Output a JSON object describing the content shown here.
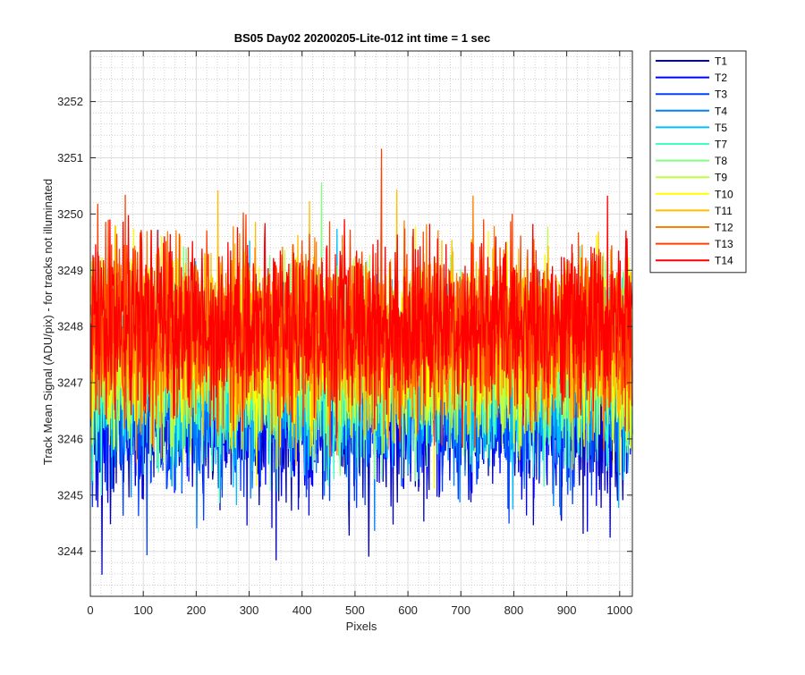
{
  "chart_data": {
    "type": "line",
    "title": "BS05 Day02 20200205-Lite-012 int time = 1 sec",
    "xlabel": "Pixels",
    "ylabel": "Track Mean Signal (ADU/pix) - for tracks not illuminated",
    "xlim": [
      0,
      1024
    ],
    "ylim": [
      3243.2,
      3252.9
    ],
    "x_ticks": [
      0,
      100,
      200,
      300,
      400,
      500,
      600,
      700,
      800,
      900,
      1000
    ],
    "y_ticks": [
      3244,
      3245,
      3246,
      3247,
      3248,
      3249,
      3250,
      3251,
      3252
    ],
    "grid": true,
    "minor_grid": true,
    "legend_location": "outside-top-right",
    "series": [
      {
        "name": "T1",
        "color": "#0000bf",
        "mean": 3246.45,
        "spread": 0.75
      },
      {
        "name": "T2",
        "color": "#0000ff",
        "mean": 3246.6,
        "spread": 0.75
      },
      {
        "name": "T3",
        "color": "#0040ff",
        "mean": 3246.75,
        "spread": 0.75
      },
      {
        "name": "T4",
        "color": "#0080ff",
        "mean": 3246.9,
        "spread": 0.75
      },
      {
        "name": "T5",
        "color": "#00bfff",
        "mean": 3247.05,
        "spread": 0.75
      },
      {
        "name": "T7",
        "color": "#40ffbf",
        "mean": 3247.2,
        "spread": 0.75
      },
      {
        "name": "T8",
        "color": "#80ff80",
        "mean": 3247.35,
        "spread": 0.75
      },
      {
        "name": "T9",
        "color": "#bfff40",
        "mean": 3247.5,
        "spread": 0.75
      },
      {
        "name": "T10",
        "color": "#ffff00",
        "mean": 3247.65,
        "spread": 0.75
      },
      {
        "name": "T11",
        "color": "#ffbf00",
        "mean": 3247.75,
        "spread": 0.75
      },
      {
        "name": "T12",
        "color": "#ff8000",
        "mean": 3247.85,
        "spread": 0.75
      },
      {
        "name": "T13",
        "color": "#ff4000",
        "mean": 3247.95,
        "spread": 0.75
      },
      {
        "name": "T14",
        "color": "#ff0000",
        "mean": 3248.05,
        "spread": 0.75
      }
    ]
  }
}
